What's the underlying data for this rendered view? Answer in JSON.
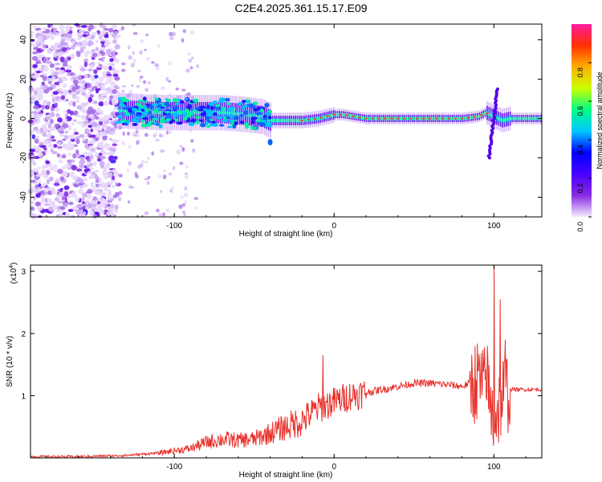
{
  "title": "C2E4.2025.361.15.17.E09",
  "chart_data": [
    {
      "type": "heatmap",
      "xlabel": "Height of straight line (km)",
      "ylabel": "Frequency (Hz)",
      "xlim": [
        -190,
        130
      ],
      "ylim": [
        -50,
        48
      ],
      "xticks": [
        -100,
        0,
        100
      ],
      "xtick_labels": [
        "-100",
        "0",
        "100"
      ],
      "yticks": [
        -40,
        -20,
        0,
        20,
        40
      ],
      "ytick_labels": [
        "-40",
        "-20",
        "0",
        "20",
        "40"
      ],
      "colorbar": {
        "label": "Normalized spectral amplitude",
        "range": [
          0,
          1
        ],
        "ticks": [
          0.0,
          0.2,
          0.4,
          0.6,
          0.8
        ],
        "tick_labels": [
          "0.0",
          "0.2",
          "0.4",
          "0.6",
          "0.8"
        ],
        "colors": [
          "#f2eefc",
          "#8a2be2",
          "#4b00ff",
          "#0000ff",
          "#00c8ff",
          "#00ff88",
          "#c8ff00",
          "#ffb000",
          "#ff3000",
          "#ff1aa0"
        ]
      },
      "ridge": {
        "x": [
          -135,
          -110,
          -90,
          -70,
          -55,
          -45,
          -40,
          -30,
          -20,
          -10,
          -5,
          0,
          5,
          20,
          40,
          60,
          80,
          90,
          95,
          100,
          105,
          110,
          120,
          130
        ],
        "y": [
          4,
          3,
          3,
          3,
          2,
          1,
          -1,
          -1,
          -1,
          0,
          1,
          2,
          2,
          0,
          0,
          0,
          0,
          1,
          3,
          1,
          -1,
          0,
          0,
          0
        ]
      },
      "noise_region_x": [
        -190,
        -135
      ]
    },
    {
      "type": "line",
      "xlabel": "Height of straight line (km)",
      "ylabel": "SNR (10 * v/v)",
      "scale_label": "(x10",
      "scale_exponent": "4",
      "scale_suffix": ")",
      "xlim": [
        -190,
        130
      ],
      "ylim": [
        0,
        3.1
      ],
      "xticks": [
        -100,
        0,
        100
      ],
      "xtick_labels": [
        "-100",
        "0",
        "100"
      ],
      "yticks": [
        1,
        2,
        3
      ],
      "ytick_labels": [
        "1",
        "2",
        "3"
      ],
      "line_color": "#e8302a",
      "envelope": {
        "x": [
          -190,
          -160,
          -130,
          -110,
          -90,
          -80,
          -70,
          -60,
          -50,
          -40,
          -30,
          -20,
          -10,
          0,
          10,
          20,
          30,
          40,
          50,
          60,
          70,
          80,
          85,
          90,
          95,
          100,
          105,
          110,
          120,
          130
        ],
        "y": [
          0.02,
          0.02,
          0.04,
          0.08,
          0.15,
          0.25,
          0.3,
          0.28,
          0.3,
          0.4,
          0.5,
          0.6,
          0.8,
          0.9,
          1.0,
          1.05,
          1.1,
          1.15,
          1.2,
          1.2,
          1.18,
          1.15,
          1.2,
          1.25,
          1.1,
          0.6,
          1.0,
          1.1,
          1.1,
          1.1
        ]
      },
      "spikes": [
        {
          "x": -7,
          "y": 1.65
        },
        {
          "x": 100,
          "y": 3.1
        },
        {
          "x": 104,
          "y": 2.55
        },
        {
          "x": 96,
          "y": 1.8
        },
        {
          "x": 107,
          "y": 1.9
        }
      ]
    }
  ]
}
